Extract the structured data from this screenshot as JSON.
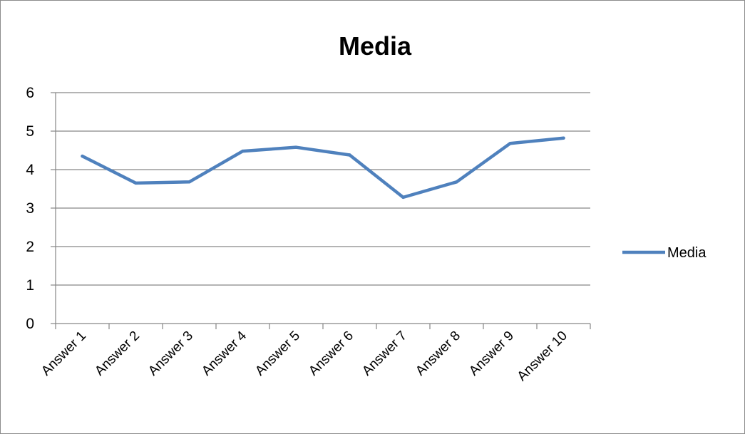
{
  "chart_data": {
    "type": "line",
    "title": "Media",
    "xlabel": "",
    "ylabel": "",
    "categories": [
      "Answer 1",
      "Answer 2",
      "Answer 3",
      "Answer 4",
      "Answer 5",
      "Answer 6",
      "Answer 7",
      "Answer 8",
      "Answer 9",
      "Answer 10"
    ],
    "series": [
      {
        "name": "Media",
        "color": "#4f81bd",
        "values": [
          4.35,
          3.65,
          3.68,
          4.48,
          4.58,
          4.38,
          3.28,
          3.68,
          4.68,
          4.82
        ]
      }
    ],
    "ylim": [
      0,
      6
    ],
    "yticks": [
      "0",
      "1",
      "2",
      "3",
      "4",
      "5",
      "6"
    ],
    "grid": true,
    "legend_position": "right"
  }
}
